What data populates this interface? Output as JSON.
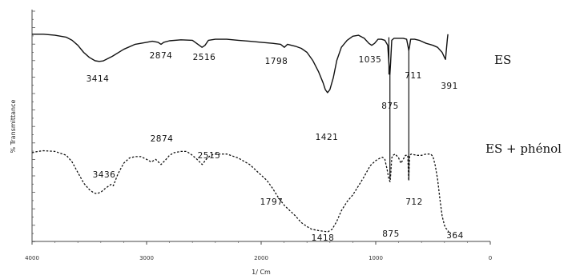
{
  "chart_data": {
    "type": "line",
    "xlabel": "1/ Cm",
    "ylabel": "% Transmittance",
    "xlim": [
      4000,
      0
    ],
    "x_ticks": [
      "4000",
      "3000",
      "2000",
      "1000",
      "0"
    ],
    "y_domain": [
      0,
      100
    ],
    "series": [
      {
        "name": "ES",
        "style": "solid",
        "points": [
          [
            4000,
            93
          ],
          [
            3900,
            93
          ],
          [
            3800,
            92
          ],
          [
            3700,
            90
          ],
          [
            3650,
            87
          ],
          [
            3600,
            82
          ],
          [
            3550,
            75
          ],
          [
            3500,
            70
          ],
          [
            3450,
            66.7
          ],
          [
            3414,
            66
          ],
          [
            3380,
            66.5
          ],
          [
            3300,
            71
          ],
          [
            3200,
            78
          ],
          [
            3100,
            83
          ],
          [
            3000,
            85
          ],
          [
            2950,
            86
          ],
          [
            2900,
            85
          ],
          [
            2874,
            83
          ],
          [
            2850,
            85
          ],
          [
            2800,
            86.5
          ],
          [
            2700,
            87.5
          ],
          [
            2600,
            87
          ],
          [
            2540,
            82
          ],
          [
            2516,
            80
          ],
          [
            2490,
            82
          ],
          [
            2460,
            87
          ],
          [
            2400,
            88
          ],
          [
            2300,
            88
          ],
          [
            2200,
            87
          ],
          [
            2100,
            86
          ],
          [
            2000,
            85
          ],
          [
            1900,
            84
          ],
          [
            1830,
            83
          ],
          [
            1798,
            80
          ],
          [
            1770,
            83
          ],
          [
            1700,
            81
          ],
          [
            1650,
            79
          ],
          [
            1600,
            75
          ],
          [
            1550,
            67
          ],
          [
            1500,
            56
          ],
          [
            1460,
            45
          ],
          [
            1440,
            38
          ],
          [
            1421,
            35
          ],
          [
            1400,
            38
          ],
          [
            1370,
            50
          ],
          [
            1340,
            67
          ],
          [
            1300,
            80
          ],
          [
            1250,
            87
          ],
          [
            1200,
            91
          ],
          [
            1150,
            92
          ],
          [
            1100,
            89
          ],
          [
            1060,
            84
          ],
          [
            1035,
            82
          ],
          [
            1010,
            84
          ],
          [
            980,
            88
          ],
          [
            950,
            88
          ],
          [
            920,
            87
          ],
          [
            895,
            82
          ],
          [
            885,
            65
          ],
          [
            876,
            53
          ],
          [
            870,
            65
          ],
          [
            860,
            87
          ],
          [
            840,
            89
          ],
          [
            800,
            89
          ],
          [
            760,
            89
          ],
          [
            730,
            88
          ],
          [
            718,
            81
          ],
          [
            711,
            77
          ],
          [
            704,
            81
          ],
          [
            695,
            88
          ],
          [
            660,
            88
          ],
          [
            620,
            87
          ],
          [
            560,
            84
          ],
          [
            500,
            82
          ],
          [
            460,
            80
          ],
          [
            420,
            75
          ],
          [
            400,
            70
          ],
          [
            391,
            68
          ],
          [
            385,
            75
          ],
          [
            375,
            88
          ],
          [
            370,
            93
          ]
        ]
      },
      {
        "name": "ES + phénol",
        "style": "dashed",
        "points": [
          [
            4000,
            60
          ],
          [
            3950,
            61
          ],
          [
            3900,
            61.5
          ],
          [
            3800,
            61
          ],
          [
            3700,
            58
          ],
          [
            3650,
            53
          ],
          [
            3600,
            45
          ],
          [
            3550,
            37
          ],
          [
            3500,
            32
          ],
          [
            3460,
            29.5
          ],
          [
            3436,
            29
          ],
          [
            3400,
            30
          ],
          [
            3360,
            33
          ],
          [
            3310,
            36
          ],
          [
            3290,
            35
          ],
          [
            3250,
            44
          ],
          [
            3200,
            52
          ],
          [
            3150,
            56
          ],
          [
            3100,
            57
          ],
          [
            3050,
            57
          ],
          [
            3000,
            55
          ],
          [
            2960,
            53
          ],
          [
            2920,
            55
          ],
          [
            2874,
            51
          ],
          [
            2840,
            54
          ],
          [
            2800,
            58
          ],
          [
            2760,
            60
          ],
          [
            2700,
            61
          ],
          [
            2650,
            61
          ],
          [
            2600,
            58
          ],
          [
            2560,
            55
          ],
          [
            2515,
            51
          ],
          [
            2480,
            55
          ],
          [
            2440,
            58
          ],
          [
            2400,
            59
          ],
          [
            2300,
            59
          ],
          [
            2200,
            56
          ],
          [
            2100,
            51
          ],
          [
            2000,
            43
          ],
          [
            1950,
            39
          ],
          [
            1900,
            33
          ],
          [
            1850,
            26
          ],
          [
            1797,
            20
          ],
          [
            1700,
            12
          ],
          [
            1650,
            7
          ],
          [
            1600,
            4
          ],
          [
            1560,
            2
          ],
          [
            1500,
            1
          ],
          [
            1460,
            0.5
          ],
          [
            1418,
            0
          ],
          [
            1380,
            2
          ],
          [
            1340,
            8
          ],
          [
            1300,
            16
          ],
          [
            1250,
            23
          ],
          [
            1200,
            28
          ],
          [
            1150,
            35
          ],
          [
            1100,
            42
          ],
          [
            1050,
            50
          ],
          [
            1000,
            54
          ],
          [
            960,
            56
          ],
          [
            940,
            56.5
          ],
          [
            920,
            55
          ],
          [
            900,
            47
          ],
          [
            885,
            40
          ],
          [
            875,
            38
          ],
          [
            868,
            45
          ],
          [
            860,
            56
          ],
          [
            850,
            58
          ],
          [
            830,
            59
          ],
          [
            800,
            56
          ],
          [
            780,
            52
          ],
          [
            760,
            55
          ],
          [
            740,
            58
          ],
          [
            720,
            58
          ],
          [
            712,
            39
          ],
          [
            704,
            58
          ],
          [
            690,
            59
          ],
          [
            640,
            58
          ],
          [
            600,
            58
          ],
          [
            560,
            59
          ],
          [
            520,
            59
          ],
          [
            500,
            57
          ],
          [
            480,
            50
          ],
          [
            460,
            40
          ],
          [
            440,
            25
          ],
          [
            420,
            12
          ],
          [
            400,
            5
          ],
          [
            390,
            3
          ],
          [
            380,
            2
          ],
          [
            370,
            1
          ],
          [
            364,
            0
          ]
        ]
      }
    ],
    "peak_labels": [
      {
        "text": "3414",
        "series": "ES"
      },
      {
        "text": "2874",
        "series": "ES"
      },
      {
        "text": "2516",
        "series": "ES"
      },
      {
        "text": "1798",
        "series": "ES"
      },
      {
        "text": "1035",
        "series": "ES"
      },
      {
        "text": "875",
        "series": "ES"
      },
      {
        "text": "711",
        "series": "ES"
      },
      {
        "text": "391",
        "series": "ES"
      },
      {
        "text": "1421",
        "series": "ES"
      },
      {
        "text": "3436",
        "series": "ES + phénol"
      },
      {
        "text": "2874",
        "series": "ES + phénol"
      },
      {
        "text": "2515",
        "series": "ES + phénol"
      },
      {
        "text": "1797",
        "series": "ES + phénol"
      },
      {
        "text": "1418",
        "series": "ES + phénol"
      },
      {
        "text": "875",
        "series": "ES + phénol"
      },
      {
        "text": "712",
        "series": "ES + phénol"
      },
      {
        "text": "364",
        "series": "ES + phénol"
      }
    ],
    "legend": [
      {
        "text": "ES",
        "series": "ES"
      },
      {
        "text": "ES + phénol",
        "series": "ES + phénol"
      }
    ],
    "colors": {
      "line": "#111111",
      "axis": "#444444",
      "background": "#ffffff"
    }
  }
}
